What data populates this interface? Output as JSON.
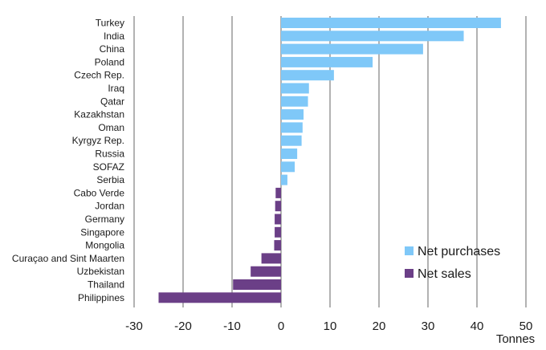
{
  "chart_data": {
    "type": "bar",
    "orientation": "horizontal",
    "categories": [
      "Turkey",
      "India",
      "China",
      "Poland",
      "Czech Rep.",
      "Iraq",
      "Qatar",
      "Kazakhstan",
      "Oman",
      "Kyrgyz Rep.",
      "Russia",
      "SOFAZ",
      "Serbia",
      "Cabo Verde",
      "Jordan",
      "Germany",
      "Singapore",
      "Mongolia",
      "Curaçao and Sint Maarten",
      "Uzbekistan",
      "Thailand",
      "Philippines"
    ],
    "values": [
      44.9,
      37.3,
      29.0,
      18.7,
      10.8,
      5.7,
      5.5,
      4.6,
      4.4,
      4.2,
      3.3,
      2.8,
      1.3,
      -1.1,
      -1.2,
      -1.3,
      -1.3,
      -1.4,
      -4.0,
      -6.2,
      -9.8,
      -25.0
    ],
    "series": [
      {
        "name": "Net purchases",
        "color": "#7fc8f8"
      },
      {
        "name": "Net sales",
        "color": "#6b3f87"
      }
    ],
    "xlabel": "Tonnes",
    "ylabel": "",
    "xlim": [
      -30,
      50
    ],
    "xticks": [
      "-30",
      "-20",
      "-10",
      "0",
      "10",
      "20",
      "30",
      "40",
      "50"
    ],
    "grid": "vertical",
    "legend_position": "bottom-right"
  }
}
